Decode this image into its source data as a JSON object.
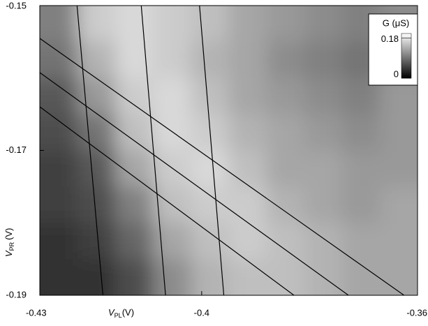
{
  "chart_data": {
    "type": "heatmap",
    "xlabel": {
      "main": "V",
      "sub": "PL",
      "unit": "(V)"
    },
    "ylabel": {
      "main": "V",
      "sub": "PR",
      "unit": "(V)"
    },
    "xlim": [
      -0.43,
      -0.36
    ],
    "xticks": [
      -0.43,
      -0.4,
      -0.36
    ],
    "ylim": [
      -0.19,
      -0.15
    ],
    "yticks": [
      -0.19,
      -0.17,
      -0.15
    ],
    "z": [
      [
        0.1,
        0.16,
        0.17,
        0.16,
        0.15,
        0.13,
        0.12,
        0.11,
        0.1,
        0.11
      ],
      [
        0.09,
        0.14,
        0.17,
        0.16,
        0.14,
        0.13,
        0.11,
        0.1,
        0.09,
        0.11
      ],
      [
        0.07,
        0.12,
        0.16,
        0.17,
        0.15,
        0.13,
        0.12,
        0.11,
        0.1,
        0.12
      ],
      [
        0.06,
        0.09,
        0.15,
        0.17,
        0.16,
        0.14,
        0.13,
        0.12,
        0.11,
        0.12
      ],
      [
        0.05,
        0.07,
        0.13,
        0.16,
        0.17,
        0.15,
        0.13,
        0.13,
        0.12,
        0.12
      ],
      [
        0.05,
        0.06,
        0.1,
        0.15,
        0.16,
        0.16,
        0.14,
        0.13,
        0.12,
        0.13
      ],
      [
        0.04,
        0.05,
        0.08,
        0.13,
        0.15,
        0.16,
        0.15,
        0.14,
        0.13,
        0.13
      ],
      [
        0.04,
        0.04,
        0.06,
        0.11,
        0.14,
        0.15,
        0.15,
        0.14,
        0.13,
        0.13
      ]
    ],
    "colorbar": {
      "title": "G (μS)",
      "zlim": [
        0,
        0.2
      ],
      "ticks": [
        0,
        0.18
      ]
    },
    "lines": [
      {
        "x": [
          -0.4231,
          -0.4183
        ],
        "y": [
          -0.15,
          -0.19
        ]
      },
      {
        "x": [
          -0.4112,
          -0.4067
        ],
        "y": [
          -0.15,
          -0.19
        ]
      },
      {
        "x": [
          -0.4004,
          -0.3959
        ],
        "y": [
          -0.15,
          -0.19
        ]
      },
      {
        "x": [
          -0.43,
          -0.3625
        ],
        "y": [
          -0.15453,
          -0.19
        ]
      },
      {
        "x": [
          -0.43,
          -0.3728
        ],
        "y": [
          -0.15925,
          -0.19
        ]
      },
      {
        "x": [
          -0.43,
          -0.3829
        ],
        "y": [
          -0.16398,
          -0.19
        ]
      }
    ]
  }
}
